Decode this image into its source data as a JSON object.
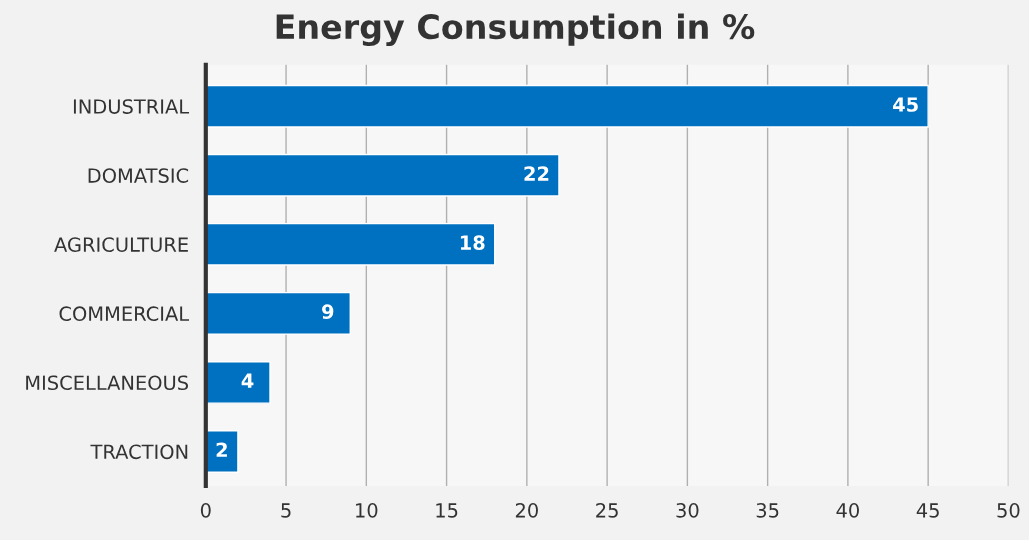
{
  "chart_data": {
    "type": "bar",
    "orientation": "horizontal",
    "title": "Energy Consumption in %",
    "categories": [
      "INDUSTRIAL",
      "DOMATSIC",
      "AGRICULTURE",
      "COMMERCIAL",
      "MISCELLANEOUS",
      "TRACTION"
    ],
    "values": [
      45,
      22,
      18,
      9,
      4,
      2
    ],
    "color": "#0070c0",
    "xlim": [
      0,
      50
    ],
    "xticks": [
      0,
      5,
      10,
      15,
      20,
      25,
      30,
      35,
      40,
      45,
      50
    ],
    "grid": "x",
    "data_labels": true,
    "legend": false
  }
}
